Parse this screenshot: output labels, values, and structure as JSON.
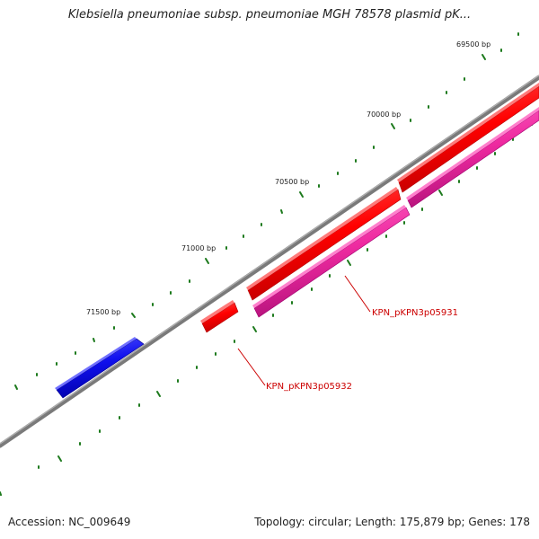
{
  "title": "Klebsiella pneumoniae subsp. pneumoniae MGH 78578 plasmid pK...",
  "footer": {
    "accession": "Accession: NC_009649",
    "stats": "Topology: circular; Length: 175,879 bp; Genes: 178"
  },
  "tick_labels": [
    "69500 bp",
    "70000 bp",
    "70500 bp",
    "71000 bp",
    "71500 bp"
  ],
  "gene_labels": [
    "KPN_pKPN3p05931",
    "KPN_pKPN3p05932"
  ],
  "colors": {
    "backbone": "#7a7a7a",
    "tick": "#1d7a1d",
    "gene_red": "#ff0000",
    "gene_pink": "#ee2aa0",
    "gene_blue": "#1010ee",
    "label_red": "#cc0000"
  }
}
